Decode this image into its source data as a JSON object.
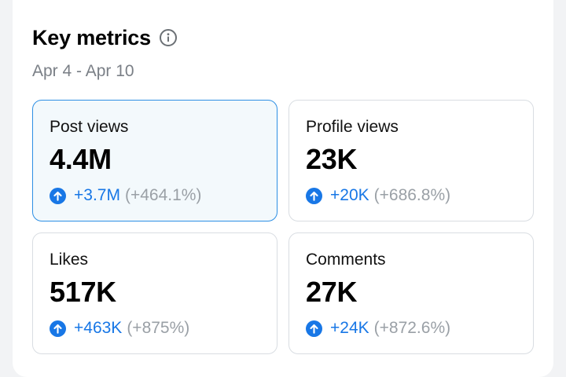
{
  "header": {
    "title": "Key metrics",
    "date_range": "Apr 4 - Apr 10"
  },
  "colors": {
    "accent": "#1877e6",
    "active_border": "#2d8fe4",
    "active_bg": "#f3f9fc",
    "muted_text": "#9aa0a6"
  },
  "icons": {
    "info": "info-circle-icon",
    "increase": "arrow-up-circle-icon"
  },
  "metrics": [
    {
      "label": "Post views",
      "value": "4.4M",
      "delta": "+3.7M",
      "pct": "(+464.1%)",
      "selected": true
    },
    {
      "label": "Profile views",
      "value": "23K",
      "delta": "+20K",
      "pct": "(+686.8%)",
      "selected": false
    },
    {
      "label": "Likes",
      "value": "517K",
      "delta": "+463K",
      "pct": "(+875%)",
      "selected": false
    },
    {
      "label": "Comments",
      "value": "27K",
      "delta": "+24K",
      "pct": "(+872.6%)",
      "selected": false
    }
  ]
}
